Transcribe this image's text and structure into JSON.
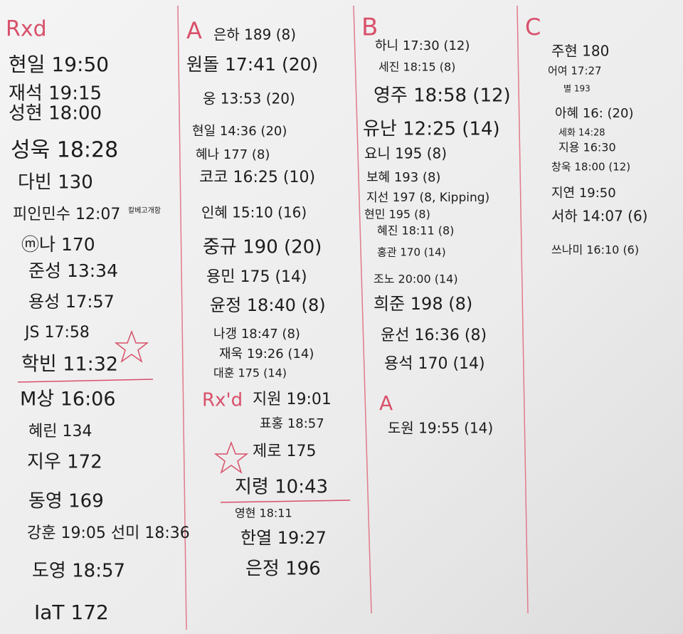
{
  "columns": [
    {
      "header": "Rxd",
      "entries": [
        "현일 19:50",
        "재석 19:15",
        "성현 18:00",
        "성욱 18:28",
        "다빈 130",
        "피인민수 12:07",
        "ⓜ나 170",
        "준성 13:34",
        "용성 17:57",
        "JS 17:58",
        "학빈 11:32",
        "M상 16:06",
        "혜린 134",
        "지우 172",
        "동영 169",
        "강훈 19:05 선미 18:36",
        "도영 18:57",
        "IaT 172"
      ],
      "note": "칼베고개함"
    },
    {
      "header": "A",
      "entries": [
        "은하 189 (8)",
        "원돌 17:41 (20)",
        "웅 13:53 (20)",
        "현일 14:36 (20)",
        "혜나 177 (8)",
        "코코 16:25 (10)",
        "인혜 15:10 (16)",
        "중규 190 (20)",
        "용민 175 (14)",
        "윤정 18:40 (8)",
        "나갱 18:47 (8)",
        "재욱 19:26 (14)",
        "대훈 175 (14)",
        "지원 19:01",
        "표홍 18:57",
        "제로 175",
        "지령 10:43",
        "영현 18:11",
        "한열 19:27",
        "은정 196"
      ],
      "sub_header": "Rx'd"
    },
    {
      "header": "B",
      "entries": [
        "하니 17:30 (12)",
        "세진 18:15 (8)",
        "영주 18:58 (12)",
        "유난 12:25 (14)",
        "요니 195 (8)",
        "보혜 193 (8)",
        "지선 197 (8, Kipping)",
        "현민 195 (8)",
        "혜진 18:11 (8)",
        "홍관 170 (14)",
        "조노 20:00 (14)",
        "희준 198 (8)",
        "윤선 16:36 (8)",
        "용석 170 (14)",
        "도원 19:55 (14)"
      ],
      "sub_header": "A"
    },
    {
      "header": "C",
      "entries": [
        "주현 180",
        "어여 17:27",
        "별 193",
        "아혜 16: (20)",
        "세화 14:28",
        "지용 16:30",
        "창욱 18:00 (12)",
        "지연 19:50",
        "서하 14:07 (6)",
        "쓰나미 16:10 (6)"
      ]
    }
  ]
}
